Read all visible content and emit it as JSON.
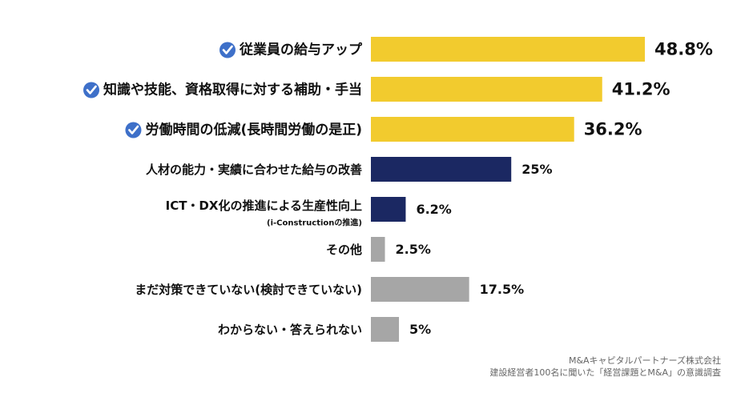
{
  "chart_data": {
    "type": "bar",
    "orientation": "horizontal",
    "title": "",
    "xlabel": "",
    "ylabel": "",
    "xlim": [
      0,
      50
    ],
    "grid": false,
    "legend": "none",
    "categories": [
      "従業員の給与アップ",
      "知識や技能、資格取得に対する補助・手当",
      "労働時間の低減(長時間労働の是正)",
      "人材の能力・実績に合わせた給与の改善",
      "ICT・DX化の推進による生産性向上",
      "その他",
      "まだ対策できていない(検討できていない)",
      "わからない・答えられない"
    ],
    "sublabels": [
      "",
      "",
      "",
      "",
      "(i-Constructionの推進)",
      "",
      "",
      ""
    ],
    "values": [
      48.8,
      41.2,
      36.2,
      25,
      6.2,
      2.5,
      17.5,
      5
    ],
    "value_labels": [
      "48.8%",
      "41.2%",
      "36.2%",
      "25%",
      "6.2%",
      "2.5%",
      "17.5%",
      "5%"
    ],
    "check_marks": [
      true,
      true,
      true,
      false,
      false,
      false,
      false,
      false
    ],
    "colors": [
      "#f2cb2e",
      "#f2cb2e",
      "#f2cb2e",
      "#1b2862",
      "#1b2862",
      "#a6a6a6",
      "#a6a6a6",
      "#a6a6a6"
    ],
    "check_color": "#3e70c9"
  },
  "credit": {
    "line1": "M&Aキャピタルパートナーズ株式会社",
    "line2": "建設経営者100名に聞いた「経営課題とM&A」の意識調査"
  }
}
